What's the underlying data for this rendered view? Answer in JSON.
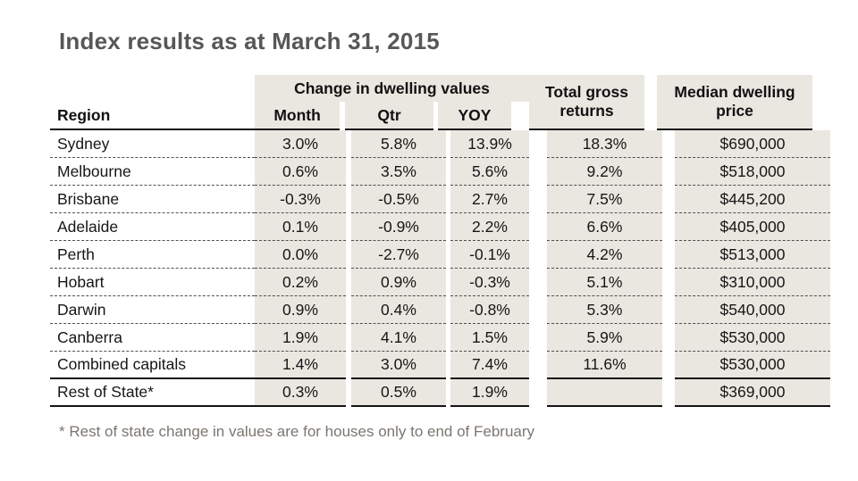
{
  "title": "Index results as at March 31, 2015",
  "table": {
    "group_header": "Change in dwelling values",
    "headers": {
      "region": "Region",
      "month": "Month",
      "qtr": "Qtr",
      "yoy": "YOY",
      "returns": "Total gross returns",
      "median": "Median dwelling price"
    }
  },
  "footnote": "* Rest of state change in values are for houses only to end of February",
  "colors": {
    "column_shade": "#eae7e1",
    "title_text": "#575757",
    "footnote_text": "#7c7670",
    "rule_strong": "#141414",
    "rule_dashed": "#4f4f4f"
  },
  "chart_data": {
    "type": "table",
    "title": "Index results as at March 31, 2015",
    "column_group": {
      "label": "Change in dwelling values",
      "columns": [
        "Month",
        "Qtr",
        "YOY"
      ]
    },
    "columns": [
      "Region",
      "Month",
      "Qtr",
      "YOY",
      "Total gross returns",
      "Median dwelling price"
    ],
    "rows": [
      [
        "Sydney",
        "3.0%",
        "5.8%",
        "13.9%",
        "18.3%",
        "$690,000"
      ],
      [
        "Melbourne",
        "0.6%",
        "3.5%",
        "5.6%",
        "9.2%",
        "$518,000"
      ],
      [
        "Brisbane",
        "-0.3%",
        "-0.5%",
        "2.7%",
        "7.5%",
        "$445,200"
      ],
      [
        "Adelaide",
        "0.1%",
        "-0.9%",
        "2.2%",
        "6.6%",
        "$405,000"
      ],
      [
        "Perth",
        "0.0%",
        "-2.7%",
        "-0.1%",
        "4.2%",
        "$513,000"
      ],
      [
        "Hobart",
        "0.2%",
        "0.9%",
        "-0.3%",
        "5.1%",
        "$310,000"
      ],
      [
        "Darwin",
        "0.9%",
        "0.4%",
        "-0.8%",
        "5.3%",
        "$540,000"
      ],
      [
        "Canberra",
        "1.9%",
        "4.1%",
        "1.5%",
        "5.9%",
        "$530,000"
      ],
      [
        "Combined capitals",
        "1.4%",
        "3.0%",
        "7.4%",
        "11.6%",
        "$530,000"
      ],
      [
        "Rest of State*",
        "0.3%",
        "0.5%",
        "1.9%",
        "",
        "$369,000"
      ]
    ],
    "footnote": "* Rest of state change in values are for houses only to end of February"
  }
}
